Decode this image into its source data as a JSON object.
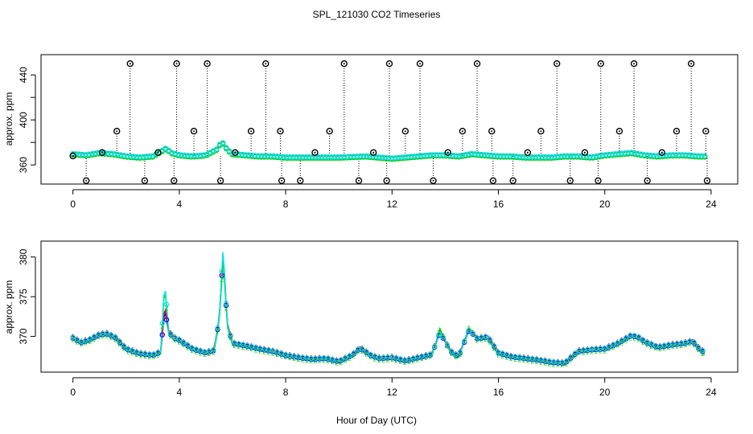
{
  "figure_title": "SPL_121030  CO2 Timeseries",
  "x_axis_label": "Hour of Day (UTC)",
  "chart_data": [
    {
      "type": "scatter",
      "panel": "top",
      "title": "SPL_121030  CO2 Timeseries",
      "xlabel": "",
      "ylabel": "approx. ppm",
      "xlim": [
        -1.2,
        25
      ],
      "ylim": [
        343,
        458
      ],
      "x_ticks": [
        0,
        4,
        8,
        12,
        16,
        20,
        24
      ],
      "x_tick_labels": [
        "0",
        "4",
        "8",
        "12",
        "16",
        "20",
        "24"
      ],
      "y_ticks": [
        360,
        380,
        400,
        420,
        440
      ],
      "y_tick_labels": [
        "360",
        "",
        "400",
        "",
        "440"
      ],
      "grid": false,
      "baseline_series": [
        {
          "name": "blue",
          "color": "#0000ff",
          "x": [
            0,
            0.5,
            1,
            1.5,
            2,
            2.5,
            3,
            3.3,
            3.5,
            3.7,
            4,
            4.5,
            5,
            5.4,
            5.6,
            5.8,
            6,
            6.5,
            7,
            7.5,
            8,
            9,
            10,
            11,
            12,
            12.5,
            13,
            13.5,
            14,
            14.5,
            15,
            15.5,
            16,
            16.5,
            17,
            17.5,
            18,
            18.5,
            19,
            19.5,
            20,
            20.5,
            21,
            21.5,
            22,
            22.5,
            23,
            23.5,
            23.8
          ],
          "y": [
            370,
            369,
            371,
            370,
            368,
            367,
            368,
            372,
            375,
            371,
            369,
            368,
            369,
            374,
            381,
            374,
            370,
            369,
            368,
            368,
            367,
            367,
            367,
            368,
            366,
            367,
            368,
            369,
            369,
            368,
            370,
            369,
            368,
            368,
            367,
            367,
            367,
            368,
            368,
            367,
            369,
            370,
            371,
            369,
            368,
            369,
            369,
            368,
            368
          ]
        },
        {
          "name": "green",
          "color": "#00cd00",
          "x": [
            0,
            0.5,
            1,
            1.5,
            2,
            2.5,
            3,
            3.3,
            3.5,
            3.7,
            4,
            4.5,
            5,
            5.4,
            5.6,
            5.8,
            6,
            6.5,
            7,
            7.5,
            8,
            9,
            10,
            11,
            12,
            12.5,
            13,
            13.5,
            14,
            14.5,
            15,
            15.5,
            16,
            16.5,
            17,
            17.5,
            18,
            18.5,
            19,
            19.5,
            20,
            20.5,
            21,
            21.5,
            22,
            22.5,
            23,
            23.5,
            23.8
          ],
          "y": [
            369,
            368,
            370,
            369,
            367,
            366,
            367,
            371,
            374,
            370,
            368,
            367,
            368,
            373,
            380,
            373,
            369,
            368,
            367,
            367,
            366,
            366,
            366,
            367,
            365,
            366,
            367,
            368,
            368,
            367,
            369,
            368,
            367,
            367,
            366,
            366,
            366,
            367,
            367,
            366,
            368,
            369,
            370,
            368,
            367,
            368,
            368,
            367,
            367
          ]
        },
        {
          "name": "cyan",
          "color": "#00e5ee",
          "x": [
            0,
            0.5,
            1,
            1.5,
            2,
            2.5,
            3,
            3.3,
            3.5,
            3.7,
            4,
            4.5,
            5,
            5.4,
            5.6,
            5.8,
            6,
            6.5,
            7,
            7.5,
            8,
            9,
            10,
            11,
            12,
            12.5,
            13,
            13.5,
            14,
            14.5,
            15,
            15.5,
            16,
            16.5,
            17,
            17.5,
            18,
            18.5,
            19,
            19.5,
            20,
            20.5,
            21,
            21.5,
            22,
            22.5,
            23,
            23.5,
            23.8
          ],
          "y": [
            370,
            369,
            371,
            370,
            368,
            367,
            368,
            372,
            375,
            371,
            369,
            368,
            369,
            374,
            381,
            374,
            370,
            369,
            368,
            368,
            367,
            367,
            367,
            368,
            366,
            367,
            368,
            369,
            369,
            368,
            370,
            369,
            368,
            368,
            367,
            367,
            367,
            368,
            368,
            367,
            369,
            370,
            371,
            369,
            368,
            369,
            369,
            368,
            368
          ]
        }
      ],
      "spike_series": {
        "name": "outliers",
        "color": "#000000",
        "x": [
          0,
          0.5,
          1.1,
          1.65,
          2.15,
          2.7,
          3.2,
          3.8,
          3.9,
          4.55,
          5.05,
          5.55,
          6.1,
          6.7,
          7.25,
          7.8,
          7.85,
          8.55,
          9.1,
          9.65,
          10.2,
          10.75,
          11.3,
          11.8,
          11.9,
          12.5,
          13.05,
          13.55,
          14.1,
          14.65,
          15.2,
          15.75,
          15.8,
          16.55,
          17.1,
          17.6,
          18.2,
          18.7,
          19.25,
          19.75,
          19.85,
          20.55,
          21.1,
          21.6,
          22.15,
          22.7,
          23.25,
          23.8,
          23.85
        ],
        "y": [
          368,
          346,
          371,
          390,
          450,
          346,
          371,
          346,
          450,
          390,
          450,
          346,
          371,
          390,
          450,
          390,
          346,
          346,
          371,
          390,
          450,
          346,
          371,
          346,
          450,
          390,
          450,
          346,
          371,
          390,
          450,
          390,
          346,
          346,
          371,
          390,
          450,
          346,
          371,
          346,
          450,
          390,
          450,
          346,
          371,
          390,
          450,
          390,
          346
        ]
      }
    },
    {
      "type": "line",
      "panel": "bottom",
      "title": "",
      "xlabel": "Hour of Day (UTC)",
      "ylabel": "approx. ppm",
      "xlim": [
        -1.2,
        25
      ],
      "ylim": [
        365.5,
        382
      ],
      "x_ticks": [
        0,
        4,
        8,
        12,
        16,
        20,
        24
      ],
      "x_tick_labels": [
        "0",
        "4",
        "8",
        "12",
        "16",
        "20",
        "24"
      ],
      "y_ticks": [
        370,
        375,
        380
      ],
      "y_tick_labels": [
        "370",
        "375",
        "380"
      ],
      "grid": false,
      "series": [
        {
          "name": "blue",
          "color": "#0000ff",
          "x": [
            0,
            0.3,
            0.6,
            1,
            1.3,
            1.6,
            2,
            2.5,
            3,
            3.3,
            3.45,
            3.6,
            3.8,
            4,
            4.5,
            5,
            5.3,
            5.5,
            5.65,
            5.8,
            6,
            6.5,
            7,
            7.5,
            8,
            8.5,
            9,
            9.5,
            10,
            10.5,
            10.8,
            11.2,
            11.5,
            12,
            12.5,
            13,
            13.5,
            13.8,
            14.2,
            14.5,
            14.9,
            15.2,
            15.6,
            16,
            16.5,
            17,
            17.5,
            18,
            18.5,
            19,
            19.5,
            20,
            20.5,
            21,
            21.3,
            21.5,
            22,
            22.5,
            23,
            23.3,
            23.6,
            23.8
          ],
          "y": [
            369.8,
            369.2,
            369.5,
            370.2,
            370.3,
            369.8,
            368.4,
            367.8,
            367.6,
            368,
            373.5,
            370.5,
            369.8,
            369.5,
            368.4,
            367.9,
            368.2,
            372,
            380.5,
            371.5,
            369.1,
            368.8,
            368.4,
            368.1,
            367.6,
            367.3,
            367.1,
            367.2,
            366.8,
            367.6,
            368.5,
            367.6,
            367.2,
            367.3,
            366.9,
            367.3,
            367.7,
            370.5,
            368.1,
            367.4,
            370.8,
            369.7,
            369.9,
            367.9,
            367.4,
            367.2,
            367,
            366.7,
            366.6,
            368.1,
            368.3,
            368.4,
            369.1,
            370.1,
            369.8,
            369.3,
            368.6,
            368.9,
            369.1,
            369.4,
            368.2,
            368
          ]
        },
        {
          "name": "red",
          "color": "#ff0000",
          "x": [
            0,
            0.3,
            0.6,
            1,
            1.3,
            1.6,
            2,
            2.5,
            3,
            3.3,
            3.45,
            3.6,
            3.8,
            4,
            4.5,
            5,
            5.3,
            5.5,
            5.65,
            5.8,
            6,
            6.5,
            7,
            7.5,
            8,
            8.5,
            9,
            9.5,
            10,
            10.5,
            10.8,
            11.2,
            11.5,
            12,
            12.5,
            13,
            13.5,
            13.8,
            14.2,
            14.5,
            14.9,
            15.2,
            15.6,
            16,
            16.5,
            17,
            17.5,
            18,
            18.5,
            19,
            19.5,
            20,
            20.5,
            21,
            21.3,
            21.5,
            22,
            22.5,
            23,
            23.3,
            23.6,
            23.8
          ],
          "y": [
            370,
            369.4,
            369.7,
            370.4,
            370.5,
            370,
            368.6,
            368,
            367.8,
            368.2,
            374,
            370.8,
            370,
            369.7,
            368.6,
            368.1,
            368.4,
            372.3,
            380.8,
            371.8,
            369.3,
            369,
            368.6,
            368.3,
            367.8,
            367.5,
            367.3,
            367.4,
            367,
            367.8,
            368.7,
            367.8,
            367.4,
            367.5,
            367.1,
            367.5,
            367.9,
            370.7,
            368.3,
            367.6,
            371,
            369.9,
            370.1,
            368.1,
            367.6,
            367.4,
            367.2,
            366.9,
            366.8,
            368.3,
            368.5,
            368.6,
            369.3,
            370.3,
            370,
            369.5,
            368.8,
            369.1,
            369.3,
            369.6,
            368.4,
            368.2
          ]
        },
        {
          "name": "green",
          "color": "#00cd00",
          "x": [
            0,
            0.3,
            0.6,
            1,
            1.3,
            1.6,
            2,
            2.5,
            3,
            3.3,
            3.45,
            3.6,
            3.8,
            4,
            4.5,
            5,
            5.3,
            5.5,
            5.65,
            5.8,
            6,
            6.5,
            7,
            7.5,
            8,
            8.5,
            9,
            9.5,
            10,
            10.5,
            10.8,
            11.2,
            11.5,
            12,
            12.5,
            13,
            13.5,
            13.8,
            14.2,
            14.5,
            14.9,
            15.2,
            15.6,
            16,
            16.5,
            17,
            17.5,
            18,
            18.5,
            19,
            19.5,
            20,
            20.5,
            21,
            21.3,
            21.5,
            22,
            22.5,
            23,
            23.3,
            23.6,
            23.8
          ],
          "y": [
            369.6,
            369,
            369.3,
            370,
            370.1,
            369.6,
            368.2,
            367.6,
            367.4,
            367.8,
            376.5,
            370.3,
            369.6,
            369.3,
            368.2,
            367.7,
            368,
            371.8,
            379.8,
            371.3,
            368.9,
            368.6,
            368.2,
            367.9,
            367.4,
            367.1,
            366.9,
            367,
            366.6,
            367.4,
            368.3,
            367.4,
            367,
            367.1,
            366.7,
            367.1,
            367.5,
            371,
            367.9,
            367.2,
            371.2,
            369.5,
            369.7,
            367.7,
            367.2,
            367,
            366.8,
            366.5,
            366.4,
            367.9,
            368.1,
            368.2,
            368.9,
            369.9,
            369.6,
            369.1,
            368.4,
            368.7,
            368.9,
            369.2,
            368,
            367.6
          ]
        },
        {
          "name": "cyan",
          "color": "#00e5ee",
          "x": [
            0,
            0.3,
            0.6,
            1,
            1.3,
            1.6,
            2,
            2.5,
            3,
            3.3,
            3.45,
            3.6,
            3.8,
            4,
            4.5,
            5,
            5.3,
            5.5,
            5.65,
            5.8,
            6,
            6.5,
            7,
            7.5,
            8,
            8.5,
            9,
            9.5,
            10,
            10.5,
            10.8,
            11.2,
            11.5,
            12,
            12.5,
            13,
            13.5,
            13.8,
            14.2,
            14.5,
            14.9,
            15.2,
            15.6,
            16,
            16.5,
            17,
            17.5,
            18,
            18.5,
            19,
            19.5,
            20,
            20.5,
            21,
            21.3,
            21.5,
            22,
            22.5,
            23,
            23.3,
            23.6,
            23.8
          ],
          "y": [
            369.9,
            369.3,
            369.6,
            370.3,
            370.4,
            369.9,
            368.5,
            367.9,
            367.7,
            368.1,
            377,
            370.6,
            369.9,
            369.6,
            368.5,
            368,
            368.3,
            372.2,
            381.2,
            371.6,
            369.2,
            368.9,
            368.5,
            368.2,
            367.7,
            367.4,
            367.2,
            367.3,
            366.9,
            367.7,
            368.6,
            367.7,
            367.3,
            367.4,
            367,
            367.4,
            367.8,
            370.6,
            368.2,
            367.5,
            370.9,
            369.8,
            370,
            368,
            367.5,
            367.3,
            367.1,
            366.8,
            366.7,
            368.2,
            368.4,
            368.5,
            369.2,
            370.2,
            369.9,
            369.4,
            368.7,
            369,
            369.2,
            369.5,
            368.3,
            368.1
          ]
        }
      ],
      "gaps_after_x": [
        3.8,
        7.5,
        12,
        15.6,
        19.5
      ]
    }
  ]
}
